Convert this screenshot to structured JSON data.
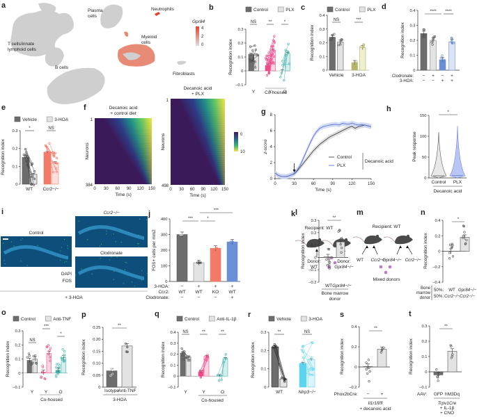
{
  "figure": {
    "panel_letters": [
      "a",
      "b",
      "c",
      "d",
      "e",
      "f",
      "g",
      "h",
      "i",
      "j",
      "k",
      "l",
      "m",
      "n",
      "o",
      "p",
      "q",
      "r",
      "s",
      "t"
    ]
  },
  "colors": {
    "control_dark": "#6d6d6d",
    "light": "#e3e3e3",
    "pink": "#ec4b8a",
    "teal": "#45b3ae",
    "olive": "#b5b56b",
    "olive_light": "#eef0cf",
    "blue": "#6a8fd6",
    "blue_light": "#dbe4f5",
    "salmon": "#f47a68",
    "salmon_light": "#fde0dc",
    "cyan": "#5cd4f0",
    "cyan_light": "#d9f4fb",
    "gpr84_red": "#e8412b",
    "umap_grey": "#cfcfcf",
    "dapi_blue": "#1a6ea3",
    "fos_green": "#2fbf71",
    "mouse": "#4a4a4a",
    "donor_purple": "#a34fb3"
  },
  "panel_a": {
    "type": "umap",
    "clusters": [
      "T cells/innate lymphoid cells",
      "B cells",
      "Plasma cells",
      "Neutrophils",
      "Myeloid cells",
      "Fibroblasts"
    ],
    "colorbar_title": "Gpr84",
    "colorbar_ticks": [
      "4",
      "2",
      "0"
    ]
  },
  "panel_f": {
    "titles": [
      "Decanoic acid\n+ control diet",
      "Decanoic acid\n+ PLX"
    ],
    "title_lines": [
      [
        "Decanoic acid",
        "+ control diet"
      ],
      [
        "Decanoic acid",
        "+ PLX"
      ]
    ],
    "ylabel": "Neurons",
    "xlabel": "Time (s)",
    "xticks": [
      "0",
      "30",
      "60",
      "90",
      "120",
      "150"
    ],
    "neuron_ranges": [
      [
        "1",
        "384"
      ],
      [
        "1",
        "498"
      ]
    ],
    "colorbar_ticks": [
      "0",
      "10"
    ]
  },
  "panel_i": {
    "labels": [
      "Control",
      "Ccr2",
      "Clodronate"
    ],
    "ccr2_sup": "−/−",
    "stain_labels": [
      "DAPI",
      "FOS"
    ],
    "footer": "+ 3-HOA"
  },
  "panel_k": {
    "recipient": "Recipient: WT",
    "donors": [
      "Donor:\nWT",
      "Donor:\nGpr84−/−"
    ],
    "donor_lines": [
      [
        "Donor:",
        "WT"
      ],
      [
        "Donor:",
        "Gpr84−/−"
      ]
    ]
  },
  "panel_m": {
    "recipient": "Recipient: WT",
    "arrow_labels": [
      "WT",
      "Ccr2−/−",
      "Gpr84−/−",
      "Ccr2−/−"
    ],
    "mixed": "Mixed donors"
  },
  "chart_data": [
    {
      "id": "b",
      "type": "bar",
      "ylabel": "Recognition index",
      "ylim": [
        -0.1,
        0.3
      ],
      "yticks": [
        -0.1,
        0,
        0.1,
        0.2,
        0.3
      ],
      "legend": [
        "Control",
        "PLX"
      ],
      "categories": [
        "Y",
        "Y",
        "O"
      ],
      "group_label": "Co-housed",
      "series": [
        {
          "name": "Control",
          "values": [
            0.12,
            0.04,
            0.0
          ]
        },
        {
          "name": "PLX",
          "values": [
            0.115,
            0.15,
            0.125
          ]
        }
      ],
      "significance": [
        "NS",
        "**",
        "*"
      ]
    },
    {
      "id": "c",
      "type": "bar",
      "ylabel": "Recognition index",
      "ylim": [
        0,
        0.4
      ],
      "yticks": [
        0,
        0.1,
        0.2,
        0.3,
        0.4
      ],
      "legend": [
        "Control",
        "PLX"
      ],
      "categories": [
        "Vehicle",
        "3-HOA"
      ],
      "series": [
        {
          "name": "Control",
          "values": [
            0.24,
            0.055
          ]
        },
        {
          "name": "PLX",
          "values": [
            0.205,
            0.165
          ]
        }
      ],
      "significance": [
        "NS",
        "***"
      ]
    },
    {
      "id": "d",
      "type": "bar",
      "ylabel": "Recognition index",
      "ylim": [
        0,
        0.4
      ],
      "yticks": [
        0,
        0.1,
        0.2,
        0.3,
        0.4
      ],
      "values": [
        0.245,
        0.2,
        0.07,
        0.19
      ],
      "row_labels": [
        "Clodronate:",
        "3-HOA:"
      ],
      "rows": [
        [
          "−",
          "+",
          "−",
          "+"
        ],
        [
          "−",
          "−",
          "+",
          "+"
        ]
      ],
      "significance": [
        "****",
        "****"
      ]
    },
    {
      "id": "e",
      "type": "bar",
      "ylabel": "Recognition index",
      "ylim": [
        0,
        0.3
      ],
      "yticks": [
        0,
        0.1,
        0.2,
        0.3
      ],
      "legend": [
        "Vehicle",
        "3-HOA"
      ],
      "categories": [
        "WT",
        "Ccr2−/−"
      ],
      "series": [
        {
          "name": "Vehicle",
          "values": [
            0.15,
            0.18
          ]
        },
        {
          "name": "3-HOA",
          "values": [
            0.055,
            0.12
          ]
        }
      ],
      "significance": [
        "*",
        "NS"
      ]
    },
    {
      "id": "g",
      "type": "line",
      "ylabel": "z-score",
      "xlabel": "Time (s)",
      "xlim": [
        0,
        150
      ],
      "ylim": [
        0,
        8
      ],
      "xticks": [
        0,
        30,
        60,
        90,
        120,
        150
      ],
      "yticks": [
        0,
        2,
        4,
        6,
        8
      ],
      "legend": [
        "Control",
        "PLX"
      ],
      "legend_group": "Decanoic acid",
      "arrow_at": 30,
      "x": [
        0,
        5,
        10,
        15,
        20,
        25,
        30,
        35,
        40,
        45,
        50,
        55,
        60,
        65,
        70,
        75,
        80,
        85,
        90,
        95,
        100,
        105,
        110,
        115,
        120,
        125,
        130,
        135,
        140,
        145,
        150
      ],
      "series": [
        {
          "name": "Control",
          "values": [
            0.7,
            0.4,
            0.28,
            0.25,
            0.3,
            0.45,
            0.6,
            1.0,
            1.5,
            2.0,
            2.5,
            3.0,
            3.5,
            3.9,
            4.3,
            4.6,
            4.9,
            5.2,
            5.4,
            5.6,
            5.8,
            6.0,
            6.2,
            6.4,
            6.55,
            6.3,
            6.5,
            6.6,
            6.7,
            6.6,
            6.5
          ]
        },
        {
          "name": "PLX",
          "values": [
            0.7,
            0.4,
            0.28,
            0.25,
            0.3,
            0.45,
            0.65,
            1.1,
            1.8,
            2.7,
            3.6,
            4.5,
            5.3,
            5.9,
            6.3,
            6.5,
            6.6,
            6.7,
            6.75,
            6.8,
            6.7,
            6.9,
            6.85,
            6.8,
            6.95,
            6.8,
            6.7,
            6.75,
            6.7,
            6.6,
            6.5
          ]
        }
      ]
    },
    {
      "id": "h",
      "type": "violin",
      "ylabel": "Peak response",
      "ylim": [
        0,
        150
      ],
      "yticks": [
        0,
        50,
        100,
        150
      ],
      "categories": [
        "Control",
        "PLX"
      ],
      "group_label": "Decanoic acid",
      "max_values": [
        110,
        125
      ],
      "medians": [
        5,
        6
      ],
      "significance": [
        "*"
      ]
    },
    {
      "id": "j",
      "type": "bar",
      "ylabel": "FOS+ cells per mm2",
      "ylim": [
        0,
        400
      ],
      "yticks": [
        0,
        100,
        200,
        300,
        400
      ],
      "values": [
        300,
        120,
        212,
        253
      ],
      "row_labels": [
        "3-HOA:",
        "Ccr2:",
        "Clodronate:"
      ],
      "rows": [
        [
          "−",
          "+",
          "+",
          "+"
        ],
        [
          "WT",
          "WT",
          "KO",
          "WT"
        ],
        [
          "−",
          "−",
          "−",
          "+"
        ]
      ],
      "significance": [
        "***",
        "*",
        "***"
      ]
    },
    {
      "id": "l",
      "type": "bar",
      "ylabel": "Recognition index",
      "ylim": [
        -0.2,
        0.3
      ],
      "yticks": [
        -0.2,
        -0.1,
        0,
        0.1,
        0.2,
        0.3
      ],
      "categories": [
        "WT",
        "Gpr84−/−"
      ],
      "group_label": "Bone marrow donor",
      "values": [
        0.005,
        0.125
      ],
      "significance": [
        "**"
      ]
    },
    {
      "id": "n",
      "type": "bar",
      "ylabel": "Recognition index",
      "ylim": [
        -0.4,
        0.4
      ],
      "yticks": [
        -0.4,
        -0.2,
        0,
        0.2,
        0.4
      ],
      "values": [
        0.0,
        0.18
      ],
      "row_header": "Bone marrow donor",
      "rows": [
        [
          "50%:",
          "WT",
          "Gpr84−/−"
        ],
        [
          "50%:",
          "Ccr2−/−",
          "Ccr2−/−"
        ]
      ],
      "significance": [
        "*"
      ]
    },
    {
      "id": "o",
      "type": "bar",
      "ylabel": "Recognition index",
      "ylim": [
        -0.1,
        0.3
      ],
      "yticks": [
        -0.1,
        0,
        0.1,
        0.2,
        0.3
      ],
      "legend": [
        "Control",
        "Anti-TNF"
      ],
      "categories": [
        "Y",
        "Y",
        "O"
      ],
      "group_label": "Co-housed",
      "series": [
        {
          "name": "Control",
          "values": [
            0.09,
            0.005,
            0.02
          ]
        },
        {
          "name": "Anti-TNF",
          "values": [
            0.1,
            0.14,
            0.11
          ]
        }
      ],
      "significance": [
        "NS",
        "***",
        "*"
      ]
    },
    {
      "id": "p",
      "type": "bar",
      "ylabel": "Recognition index",
      "ylim": [
        0,
        0.25
      ],
      "yticks": [
        0,
        0.05,
        0.1,
        0.15,
        0.2,
        0.25
      ],
      "tick_labels": [
        "0",
        "0.05",
        "0.10",
        "0.15",
        "0.20",
        "0.25"
      ],
      "categories": [
        "Isotype",
        "Anti-TNF"
      ],
      "group_label": "3-HOA",
      "values": [
        0.068,
        0.172
      ],
      "significance": [
        "**"
      ]
    },
    {
      "id": "q",
      "type": "bar",
      "ylabel": "Recognition index",
      "ylim": [
        -0.1,
        0.4
      ],
      "yticks": [
        -0.1,
        0,
        0.1,
        0.2,
        0.3,
        0.4
      ],
      "legend": [
        "Control",
        "Anti-IL-1β"
      ],
      "categories": [
        "Y",
        "Y",
        "O"
      ],
      "group_label": "Co-housed",
      "series": [
        {
          "name": "Control",
          "values": [
            0.21,
            0.04,
            0.005
          ]
        },
        {
          "name": "Anti-IL-1β",
          "values": [
            0.175,
            0.18,
            0.16
          ]
        }
      ],
      "significance": [
        "NS",
        "**",
        "**"
      ]
    },
    {
      "id": "r",
      "type": "bar",
      "ylabel": "Recognition index",
      "ylim": [
        0,
        0.3
      ],
      "yticks": [
        0,
        0.1,
        0.2,
        0.3
      ],
      "legend": [
        "Vehicle",
        "3-HOA"
      ],
      "categories": [
        "WT",
        "Nlrp3−/−"
      ],
      "series": [
        {
          "name": "Vehicle",
          "values": [
            0.22,
            0.13
          ]
        },
        {
          "name": "3-HOA",
          "values": [
            0.045,
            0.15
          ]
        }
      ],
      "significance": [
        "**",
        "NS"
      ]
    },
    {
      "id": "s",
      "type": "bar",
      "ylabel": "Recognition index",
      "ylim": [
        -0.2,
        0.4
      ],
      "yticks": [
        -0.2,
        0,
        0.2,
        0.4
      ],
      "row_label": "Phox2bCre:",
      "row": [
        "−",
        "+"
      ],
      "footer": [
        "Il1r1fl/fl",
        "+ decanoic acid"
      ],
      "values": [
        0.005,
        0.175
      ],
      "significance": [
        "**"
      ]
    },
    {
      "id": "t",
      "type": "bar",
      "ylabel": "Recognition index",
      "ylim": [
        -0.1,
        0.3
      ],
      "yticks": [
        -0.1,
        0,
        0.1,
        0.2,
        0.3
      ],
      "row_label": "AAV:",
      "categories": [
        "GFP",
        "hM3Dq"
      ],
      "footer": [
        "Trpv1Cre",
        "+ IL-1β",
        "+ CNO"
      ],
      "values": [
        -0.02,
        0.135
      ],
      "significance": [
        "**"
      ]
    }
  ]
}
